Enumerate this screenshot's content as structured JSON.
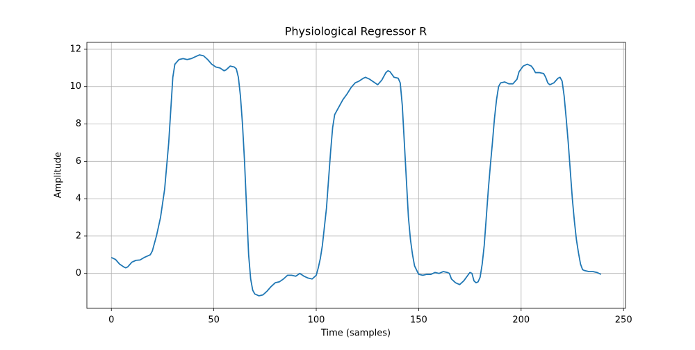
{
  "chart_data": {
    "type": "line",
    "title": "Physiological Regressor R",
    "x_label": "Time (samples)",
    "y_label": "Amplitude",
    "x": [
      0,
      2,
      4,
      6,
      7,
      8,
      10,
      12,
      14,
      16,
      18,
      19,
      20,
      22,
      24,
      26,
      28,
      30,
      31,
      33,
      35,
      37,
      39,
      41,
      43,
      45,
      47,
      49,
      51,
      53,
      55,
      56,
      58,
      60,
      61,
      62,
      63,
      64,
      65,
      66,
      67,
      68,
      69,
      70,
      72,
      74,
      76,
      78,
      80,
      82,
      84,
      86,
      88,
      90,
      92,
      94,
      96,
      98,
      100,
      101,
      102,
      103,
      104,
      105,
      106,
      107,
      108,
      109,
      111,
      113,
      115,
      117,
      119,
      121,
      123,
      124,
      126,
      128,
      130,
      132,
      134,
      135,
      136,
      138,
      140,
      141,
      142,
      143,
      144,
      145,
      146,
      147,
      148,
      150,
      152,
      154,
      156,
      158,
      160,
      162,
      164,
      165,
      166,
      168,
      170,
      172,
      174,
      175,
      176,
      177,
      178,
      179,
      180,
      181,
      182,
      183,
      184,
      185,
      186,
      187,
      188,
      189,
      190,
      192,
      194,
      196,
      198,
      199,
      201,
      203,
      205,
      206,
      207,
      209,
      211,
      212,
      213,
      214,
      216,
      218,
      219,
      220,
      221,
      222,
      223,
      224,
      225,
      226,
      227,
      228,
      229,
      230,
      231,
      233,
      235,
      237,
      239
    ],
    "series": [
      {
        "name": "R",
        "color": "#1f77b4",
        "values": [
          0.85,
          0.75,
          0.5,
          0.35,
          0.3,
          0.35,
          0.6,
          0.7,
          0.72,
          0.85,
          0.95,
          1.0,
          1.2,
          2.0,
          3.0,
          4.5,
          7.0,
          10.5,
          11.2,
          11.45,
          11.5,
          11.45,
          11.5,
          11.6,
          11.7,
          11.65,
          11.45,
          11.2,
          11.05,
          11.0,
          10.85,
          10.9,
          11.1,
          11.05,
          10.95,
          10.5,
          9.5,
          8.0,
          6.0,
          3.5,
          1.0,
          -0.3,
          -0.9,
          -1.1,
          -1.2,
          -1.15,
          -0.95,
          -0.7,
          -0.5,
          -0.45,
          -0.3,
          -0.1,
          -0.1,
          -0.15,
          0.0,
          -0.15,
          -0.25,
          -0.3,
          -0.1,
          0.3,
          0.8,
          1.5,
          2.5,
          3.5,
          5.0,
          6.5,
          7.8,
          8.5,
          8.9,
          9.3,
          9.6,
          9.95,
          10.2,
          10.3,
          10.45,
          10.5,
          10.4,
          10.25,
          10.1,
          10.35,
          10.75,
          10.85,
          10.8,
          10.5,
          10.45,
          10.2,
          9.0,
          7.0,
          5.0,
          3.0,
          1.8,
          1.0,
          0.4,
          -0.05,
          -0.1,
          -0.05,
          -0.05,
          0.05,
          0.0,
          0.1,
          0.05,
          0.0,
          -0.3,
          -0.5,
          -0.6,
          -0.4,
          -0.1,
          0.05,
          0.0,
          -0.4,
          -0.5,
          -0.45,
          -0.2,
          0.5,
          1.5,
          3.0,
          4.5,
          5.8,
          7.0,
          8.3,
          9.3,
          10.0,
          10.2,
          10.25,
          10.15,
          10.15,
          10.4,
          10.8,
          11.1,
          11.2,
          11.1,
          10.95,
          10.75,
          10.75,
          10.7,
          10.5,
          10.2,
          10.1,
          10.2,
          10.45,
          10.5,
          10.3,
          9.5,
          8.3,
          7.0,
          5.5,
          4.0,
          2.8,
          1.8,
          1.1,
          0.5,
          0.2,
          0.15,
          0.1,
          0.1,
          0.05,
          -0.05
        ]
      }
    ],
    "xlim": [
      -11.95,
      250.95
    ],
    "ylim": [
      -1.87,
      12.37
    ],
    "xticks": [
      0,
      50,
      100,
      150,
      200,
      250
    ],
    "yticks": [
      0,
      2,
      4,
      6,
      8,
      10,
      12
    ],
    "grid": true
  }
}
